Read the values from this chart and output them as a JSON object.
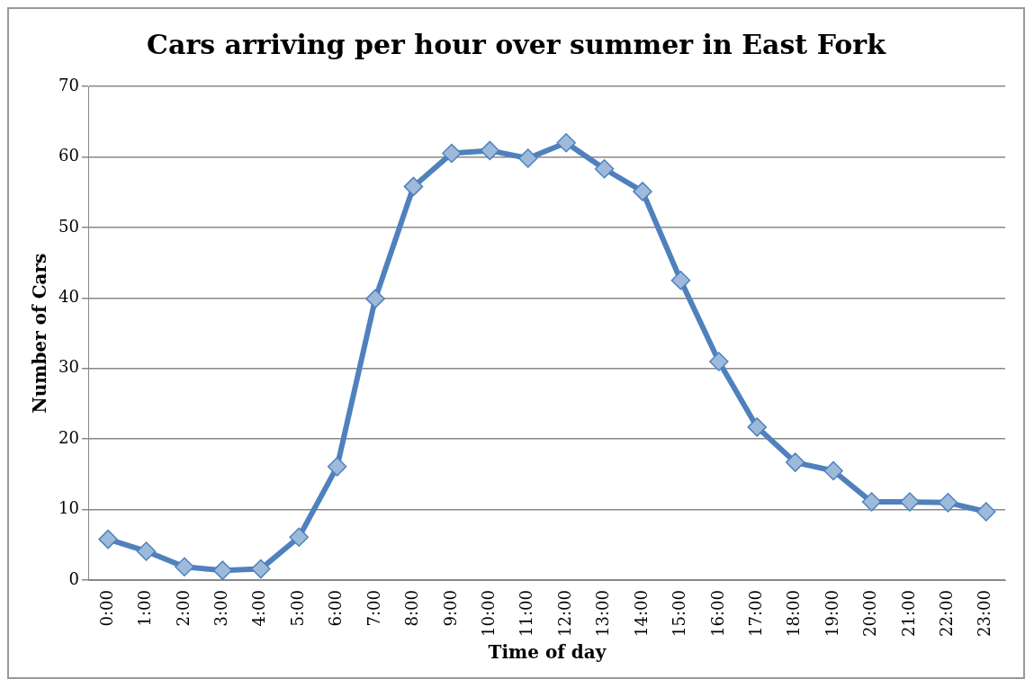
{
  "chart_data": {
    "type": "line",
    "title": "Cars arriving per hour over summer in East Fork",
    "xlabel": "Time of day",
    "ylabel": "Number of Cars",
    "categories": [
      "0:00",
      "1:00",
      "2:00",
      "3:00",
      "4:00",
      "5:00",
      "6:00",
      "7:00",
      "8:00",
      "9:00",
      "10:00",
      "11:00",
      "12:00",
      "13:00",
      "14:00",
      "15:00",
      "16:00",
      "17:00",
      "18:00",
      "19:00",
      "20:00",
      "21:00",
      "22:00",
      "23:00"
    ],
    "series": [
      {
        "color": "#4f81bd",
        "values": [
          5.8,
          4.1,
          1.9,
          1.4,
          1.6,
          6.1,
          16.1,
          39.9,
          55.8,
          60.5,
          60.9,
          59.8,
          62.0,
          58.3,
          55.1,
          42.5,
          31.0,
          21.7,
          16.7,
          15.5,
          11.1,
          11.1,
          11.0,
          9.7
        ]
      }
    ],
    "ylim": [
      0,
      70
    ],
    "yticks": [
      0,
      10,
      20,
      30,
      40,
      50,
      60,
      70
    ],
    "grid": "y",
    "legend": false,
    "marker": "diamond",
    "line_style": "solid"
  }
}
